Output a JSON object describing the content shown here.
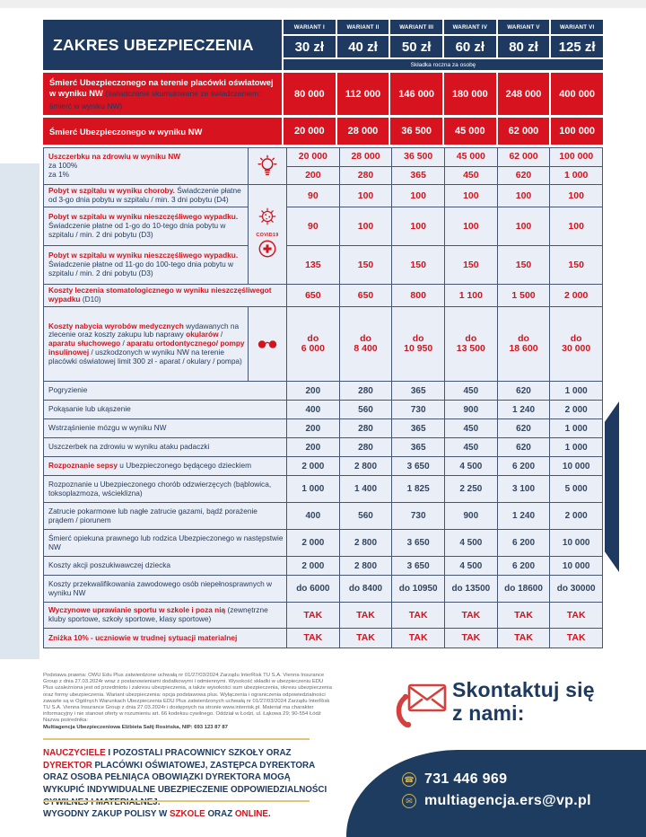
{
  "colors": {
    "navy": "#1e3a60",
    "red": "#d6131f",
    "accent_red_text": "#d2141e",
    "gold": "#e2c57a",
    "row_bg": "#eaeff7"
  },
  "table": {
    "title": "ZAKRES UBEZPIECZENIA",
    "variants": [
      "WARIANT I",
      "WARIANT II",
      "WARIANT III",
      "WARIANT IV",
      "WARIANT V",
      "WARIANT VI"
    ],
    "prices": [
      "30 zł",
      "40 zł",
      "50 zł",
      "60 zł",
      "80 zł",
      "125 zł"
    ],
    "premium_note": "Składka roczna za osobę",
    "death_rows": [
      {
        "label": [
          {
            "t": "Śmierć Ubezpieczonego na terenie placówki oświatowej w wyniku NW ",
            "s": "bold"
          },
          {
            "t": "(świadczenie skumulowane ze świadczeniem: śmierć w wyniku NW)",
            "s": "plain"
          }
        ],
        "values": [
          "80 000",
          "112 000",
          "146 000",
          "180 000",
          "248 000",
          "400 000"
        ]
      },
      {
        "label": [
          {
            "t": "Śmierć Ubezpieczonego w wyniku NW",
            "s": "bold"
          }
        ],
        "values": [
          "20 000",
          "28 000",
          "36 500",
          "45 000",
          "62 000",
          "100 000"
        ]
      }
    ],
    "rows": [
      {
        "icon": "lightbulb-icon",
        "value_color": "red",
        "label": [
          {
            "t": "Uszczerbku na zdrowiu w wyniku NW",
            "s": "red"
          },
          {
            "t": "za 100%",
            "s": "plain",
            "br": 1
          },
          {
            "t": "za 1%",
            "s": "plain",
            "br": 1
          }
        ],
        "values": [
          "20 000",
          "28 000",
          "36 500",
          "45 000",
          "62 000",
          "100 000"
        ],
        "values2": [
          "200",
          "280",
          "365",
          "450",
          "620",
          "1 000"
        ]
      },
      {
        "icon": "covid19-virus-cross-icon",
        "caption": "COVID19",
        "value_color": "red",
        "rows": [
          {
            "label": [
              {
                "t": "Pobyt w szpitalu w wyniku choroby.",
                "s": "red"
              },
              {
                "t": " Świadczenie płatne od 3-go dnia pobytu w szpitalu / min. 3 dni pobytu (D4)",
                "s": "plain"
              }
            ],
            "values": [
              "90",
              "100",
              "100",
              "100",
              "100",
              "100"
            ]
          },
          {
            "label": [
              {
                "t": "Pobyt w szpitalu w wyniku nieszczęśliwego wypadku.",
                "s": "red"
              },
              {
                "t": " Świadczenie płatne od 1-go do 10-tego dnia pobytu w szpitalu / min. 2 dni pobytu (D3)",
                "s": "plain"
              }
            ],
            "values": [
              "90",
              "100",
              "100",
              "100",
              "100",
              "100"
            ]
          },
          {
            "label": [
              {
                "t": "Pobyt w szpitalu w wyniku nieszczęśliwego wypadku.",
                "s": "red"
              },
              {
                "t": " Świadczenie płatne od 11-go do 100-tego dnia pobytu w szpitalu / min. 2 dni pobytu (D3)",
                "s": "plain"
              }
            ],
            "values": [
              "135",
              "150",
              "150",
              "150",
              "150",
              "150"
            ]
          }
        ]
      },
      {
        "icon": null,
        "value_color": "red",
        "label": [
          {
            "t": "Koszty leczenia stomatologicznego w wyniku nieszczęśliwegot wypadku",
            "s": "red"
          },
          {
            "t": " (D10)",
            "s": "plain"
          }
        ],
        "values": [
          "650",
          "650",
          "800",
          "1 100",
          "1 500",
          "2 000"
        ]
      },
      {
        "icon": "glasses-icon",
        "value_color": "red",
        "label": [
          {
            "t": "Koszty nabycia wyrobów medycznych",
            "s": "red"
          },
          {
            "t": " wydawanych na zlecenie oraz koszty zakupu lub naprawy ",
            "s": "plain"
          },
          {
            "t": "okularów",
            "s": "red"
          },
          {
            "t": " / ",
            "s": "plain"
          },
          {
            "t": "aparatu słuchowego",
            "s": "red"
          },
          {
            "t": " / ",
            "s": "plain"
          },
          {
            "t": "aparatu ortodontycznego/ pompy insulinowej",
            "s": "red"
          },
          {
            "t": " / uszkodzonych w wyniku NW na terenie placówki oświatowej limit 300 zł - aparat / okulary / pompa)",
            "s": "plain"
          }
        ],
        "values": [
          "do\n6 000",
          "do\n8 400",
          "do\n10 950",
          "do\n13 500",
          "do\n18 600",
          "do\n30 000"
        ]
      },
      {
        "icon": null,
        "value_color": "navy",
        "label": [
          {
            "t": "Pogryzienie",
            "s": "plain"
          }
        ],
        "values": [
          "200",
          "280",
          "365",
          "450",
          "620",
          "1 000"
        ]
      },
      {
        "icon": null,
        "value_color": "navy",
        "label": [
          {
            "t": "Pokąsanie lub ukąszenie",
            "s": "plain"
          }
        ],
        "values": [
          "400",
          "560",
          "730",
          "900",
          "1 240",
          "2 000"
        ]
      },
      {
        "icon": null,
        "value_color": "navy",
        "label": [
          {
            "t": "Wstrząśnienie mózgu w wyniku NW",
            "s": "plain"
          }
        ],
        "values": [
          "200",
          "280",
          "365",
          "450",
          "620",
          "1 000"
        ]
      },
      {
        "icon": null,
        "value_color": "navy",
        "label": [
          {
            "t": "Uszczerbek na zdrowiu w wyniku ataku padaczki",
            "s": "plain"
          }
        ],
        "values": [
          "200",
          "280",
          "365",
          "450",
          "620",
          "1 000"
        ]
      },
      {
        "icon": null,
        "value_color": "navy",
        "label": [
          {
            "t": "Rozpoznanie sepsy",
            "s": "red"
          },
          {
            "t": " u Ubezpieczonego będącego dzieckiem",
            "s": "plain"
          }
        ],
        "values": [
          "2 000",
          "2 800",
          "3 650",
          "4 500",
          "6 200",
          "10 000"
        ]
      },
      {
        "icon": null,
        "value_color": "navy",
        "label": [
          {
            "t": "Rozpoznanie u Ubezpieczonego chorób odzwierzęcych (bąblowica, toksoplazmoza, wścieklizna)",
            "s": "plain"
          }
        ],
        "values": [
          "1 000",
          "1 400",
          "1 825",
          "2 250",
          "3 100",
          "5 000"
        ]
      },
      {
        "icon": null,
        "value_color": "navy",
        "label": [
          {
            "t": "Zatrucie pokarmowe lub nagłe zatrucie gazami, bądź porażenie prądem / piorunem",
            "s": "plain"
          }
        ],
        "values": [
          "400",
          "560",
          "730",
          "900",
          "1 240",
          "2 000"
        ]
      },
      {
        "icon": null,
        "value_color": "navy",
        "label": [
          {
            "t": "Śmierć opiekuna prawnego lub rodzica Ubezpieczonego w następstwie NW",
            "s": "plain"
          }
        ],
        "values": [
          "2 000",
          "2 800",
          "3 650",
          "4 500",
          "6 200",
          "10 000"
        ]
      },
      {
        "icon": null,
        "value_color": "navy",
        "label": [
          {
            "t": "Koszty akcji poszukiwawczej dziecka",
            "s": "plain"
          }
        ],
        "values": [
          "2 000",
          "2 800",
          "3 650",
          "4 500",
          "6 200",
          "10 000"
        ]
      },
      {
        "icon": null,
        "value_color": "navy",
        "label": [
          {
            "t": "Koszty przekwalifikowania zawodowego osób niepełnosprawnych w wyniku NW",
            "s": "plain"
          }
        ],
        "values": [
          "do 6000",
          "do 8400",
          "do 10950",
          "do 13500",
          "do 18600",
          "do 30000"
        ]
      },
      {
        "icon": null,
        "value_color": "red",
        "label": [
          {
            "t": "Wyczynowe uprawianie sportu w szkole i poza nią",
            "s": "red"
          },
          {
            "t": " (zewnętrzne kluby sportowe, szkoły sportowe, klasy sportowe)",
            "s": "plain"
          }
        ],
        "values": [
          "TAK",
          "TAK",
          "TAK",
          "TAK",
          "TAK",
          "TAK"
        ]
      },
      {
        "icon": null,
        "value_color": "red",
        "label": [
          {
            "t": "Zniżka 10% - uczniowie w trudnej sytuacji materialnej",
            "s": "red"
          }
        ],
        "values": [
          "TAK",
          "TAK",
          "TAK",
          "TAK",
          "TAK",
          "TAK"
        ]
      }
    ]
  },
  "legal": {
    "text": "Podstawa prawna: OWU Edu Plus zatwierdzone uchwałą nr 01/27/03/2024 Zarządu InterRisk TU S.A. Vienna Insurance Group z dnia 27.03.2024r wraz z postanowieniami dodatkowymi i odmiennymi. Wysokość składki w ubezpieczeniu EDU Plus uzależniona jest od przedmiotu i zakresu ubezpieczenia, a także wysokości sum ubezpieczenia, okresu ubezpieczenia oraz formy ubezpieczenia. Wariant ubezpieczenia: opcja podstawowa plus. Wyłączenia i ograniczenia odpowiedzialności zawarte są w Ogólnych Warunkach Ubezpieczenia EDU Plus zatwierdzonych uchwałą nr 01/27/03/2024 Zarządu InterRisk TU S.A. Vienna Insurance Group z dnia 27.03.2024r i dostępnych na stronie www.interrisk.pl. Materiał ma charakter informacyjny i nie stanowi oferty w rozumieniu art. 66 kodeksu cywilnego. Oddział w Łodzi, ul. Łąkowa 29; 90-554 Łódź Nazwa pośrednika:",
    "agent": "Multiagencja Ubezpieczeniowa Elżbieta Sałij Rosińska, NIP: 693 123 87 87"
  },
  "notice": {
    "segments": [
      {
        "t": "NAUCZYCIELE",
        "s": "red"
      },
      {
        "t": " I POZOSTALI PRACOWNICY SZKOŁY ORAZ ",
        "s": "plain"
      },
      {
        "t": "DYREKTOR",
        "s": "red"
      },
      {
        "t": " PLACÓWKI OŚWIATOWEJ, ZASTĘPCA DYREKTORA ORAZ OSOBA PEŁNIĄCA OBOWIĄZKI DYREKTORA MOGĄ WYKUPIĆ INDYWIDUALNE UBEZPIECZENIE ODPOWIEDZIALNOŚCI CYWILNEJ I MATERIALNEJ.",
        "s": "plain"
      }
    ]
  },
  "purchase": {
    "segments": [
      {
        "t": "WYGODNY ZAKUP POLISY W ",
        "s": "plain"
      },
      {
        "t": "SZKOLE",
        "s": "red"
      },
      {
        "t": " ORAZ ",
        "s": "plain"
      },
      {
        "t": "ONLINE",
        "s": "red"
      },
      {
        "t": ".",
        "s": "plain"
      }
    ]
  },
  "contact": {
    "title": "Skontaktuj się z nami:",
    "phone": "731 446 969",
    "email": "multiagencja.ers@vp.pl"
  }
}
